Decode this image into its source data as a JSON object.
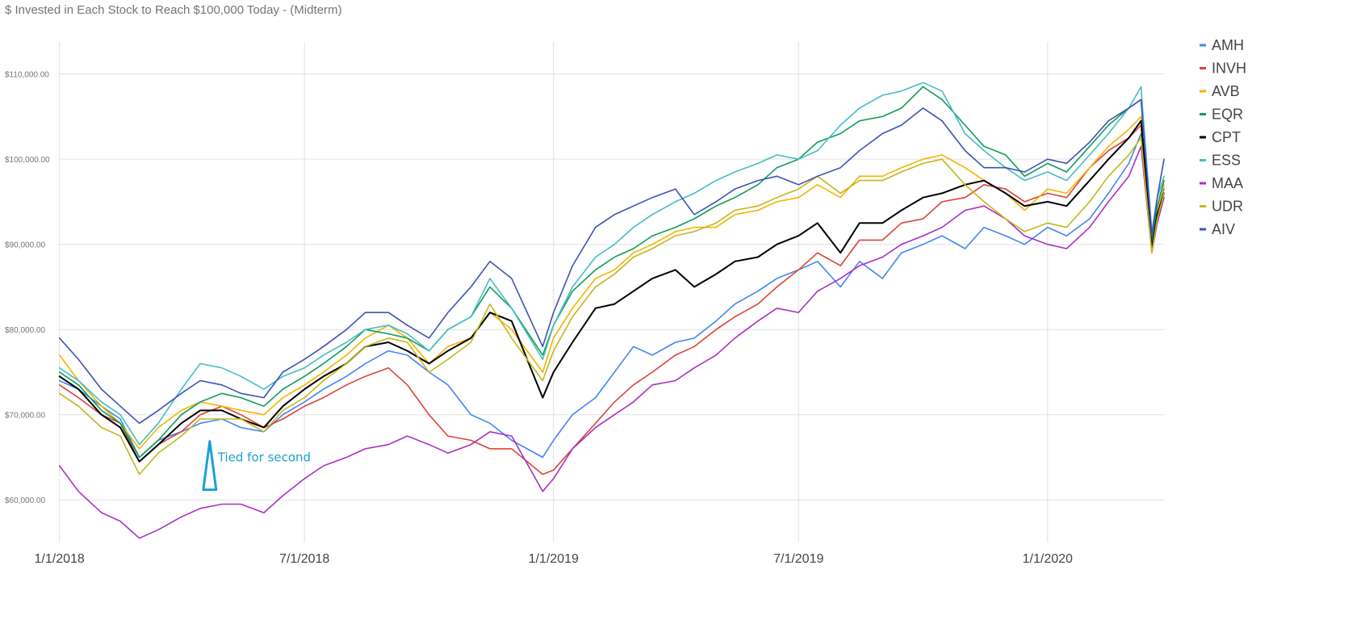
{
  "chart_data": {
    "type": "line",
    "title": "$ Invested in Each Stock to Reach $100,000 Today - (Midterm)",
    "xlabel": "",
    "ylabel": "",
    "ylim": [
      55000,
      113000
    ],
    "x_range": [
      "2017-12-31",
      "2020-03-27"
    ],
    "grid": true,
    "legend_position": "right",
    "y_ticks": [
      60000,
      70000,
      80000,
      90000,
      100000,
      110000
    ],
    "y_tick_labels": [
      "$60,000.00",
      "$70,000.00",
      "$80,000.00",
      "$90,000.00",
      "$100,000.00",
      "$110,000.00"
    ],
    "x_ticks": [
      "2018-01-01",
      "2018-07-01",
      "2019-01-01",
      "2019-07-01",
      "2020-01-01"
    ],
    "x_tick_labels": [
      "1/1/2018",
      "7/1/2018",
      "1/1/2019",
      "7/1/2019",
      "1/1/2020"
    ],
    "x_dates": [
      "2018-01-01",
      "2018-01-15",
      "2018-02-01",
      "2018-02-15",
      "2018-03-01",
      "2018-03-15",
      "2018-04-01",
      "2018-04-15",
      "2018-05-01",
      "2018-05-15",
      "2018-06-01",
      "2018-06-15",
      "2018-07-01",
      "2018-07-15",
      "2018-08-01",
      "2018-08-15",
      "2018-09-01",
      "2018-09-15",
      "2018-10-01",
      "2018-10-15",
      "2018-11-01",
      "2018-11-15",
      "2018-12-01",
      "2018-12-24",
      "2019-01-01",
      "2019-01-15",
      "2019-02-01",
      "2019-02-15",
      "2019-03-01",
      "2019-03-15",
      "2019-04-01",
      "2019-04-15",
      "2019-05-01",
      "2019-05-15",
      "2019-06-01",
      "2019-06-15",
      "2019-07-01",
      "2019-07-15",
      "2019-08-01",
      "2019-08-15",
      "2019-09-01",
      "2019-09-15",
      "2019-10-01",
      "2019-10-15",
      "2019-11-01",
      "2019-11-15",
      "2019-12-01",
      "2019-12-15",
      "2020-01-01",
      "2020-01-15",
      "2020-02-01",
      "2020-02-15",
      "2020-03-01",
      "2020-03-10",
      "2020-03-18",
      "2020-03-22",
      "2020-03-27"
    ],
    "series": [
      {
        "name": "AMH",
        "color": "#4285f4",
        "values": [
          74000,
          73000,
          71000,
          69500,
          65000,
          67000,
          68000,
          69000,
          69500,
          68500,
          68000,
          70000,
          71500,
          73000,
          74500,
          76000,
          77500,
          77000,
          75000,
          73500,
          70000,
          69000,
          67000,
          65000,
          67000,
          70000,
          72000,
          75000,
          78000,
          77000,
          78500,
          79000,
          81000,
          83000,
          84500,
          86000,
          87000,
          88000,
          85000,
          88000,
          86000,
          89000,
          90000,
          91000,
          89500,
          92000,
          91000,
          90000,
          92000,
          91000,
          93000,
          96000,
          99500,
          103000,
          90000,
          94000,
          96500
        ]
      },
      {
        "name": "INVH",
        "color": "#db4437",
        "values": [
          73500,
          72000,
          70000,
          69000,
          64500,
          66500,
          68000,
          70000,
          71000,
          70000,
          68500,
          69500,
          71000,
          72000,
          73500,
          74500,
          75500,
          73500,
          70000,
          67500,
          67000,
          66000,
          66000,
          63000,
          63500,
          66000,
          69000,
          71500,
          73500,
          75000,
          77000,
          78000,
          80000,
          81500,
          83000,
          85000,
          87000,
          89000,
          87500,
          90500,
          90500,
          92500,
          93000,
          95000,
          95500,
          97000,
          96500,
          95000,
          96000,
          95500,
          99000,
          101000,
          102500,
          104000,
          90000,
          93000,
          96000
        ]
      },
      {
        "name": "AVB",
        "color": "#f4b400",
        "values": [
          77000,
          74000,
          71000,
          69000,
          66000,
          68500,
          70500,
          71500,
          71000,
          70500,
          70000,
          72000,
          73500,
          75000,
          77000,
          79000,
          80500,
          79000,
          76000,
          78000,
          79000,
          82000,
          80000,
          75000,
          79000,
          82500,
          86000,
          87000,
          89000,
          90000,
          91500,
          92000,
          92000,
          93500,
          94000,
          95000,
          95500,
          97000,
          95500,
          98000,
          98000,
          99000,
          100000,
          100500,
          99000,
          97500,
          96000,
          94000,
          96500,
          96000,
          99000,
          101500,
          103500,
          105000,
          89500,
          94000,
          97000
        ]
      },
      {
        "name": "EQR",
        "color": "#0f9d58",
        "values": [
          75000,
          73500,
          70500,
          69000,
          65000,
          67000,
          70000,
          71500,
          72500,
          72000,
          71000,
          73000,
          74500,
          76000,
          78000,
          80000,
          79500,
          79000,
          77500,
          80000,
          81500,
          85000,
          82500,
          77000,
          80500,
          84500,
          87000,
          88500,
          89500,
          91000,
          92000,
          93000,
          94500,
          95500,
          97000,
          99000,
          100000,
          102000,
          103000,
          104500,
          105000,
          106000,
          108500,
          107000,
          104000,
          101500,
          100500,
          98000,
          99500,
          98500,
          101500,
          104000,
          106000,
          107000,
          90500,
          94500,
          97500
        ]
      },
      {
        "name": "CPT",
        "color": "#000000",
        "values": [
          74500,
          73000,
          70000,
          68500,
          64500,
          66500,
          69000,
          70500,
          70500,
          69500,
          68500,
          71000,
          73000,
          74500,
          76000,
          78000,
          78500,
          77500,
          76000,
          77500,
          79000,
          82000,
          81000,
          72000,
          75000,
          78500,
          82500,
          83000,
          84500,
          86000,
          87000,
          85000,
          86500,
          88000,
          88500,
          90000,
          91000,
          92500,
          89000,
          92500,
          92500,
          94000,
          95500,
          96000,
          97000,
          97500,
          96000,
          94500,
          95000,
          94500,
          97500,
          100000,
          102500,
          104500,
          89500,
          93500,
          96000
        ]
      },
      {
        "name": "ESS",
        "color": "#46bdc6",
        "values": [
          75500,
          74000,
          71500,
          70000,
          66500,
          69000,
          73000,
          76000,
          75500,
          74500,
          73000,
          74500,
          75500,
          77000,
          78500,
          80000,
          80500,
          79500,
          77500,
          80000,
          81500,
          86000,
          82500,
          76500,
          80500,
          85000,
          88500,
          90000,
          92000,
          93500,
          95000,
          96000,
          97500,
          98500,
          99500,
          100500,
          100000,
          101000,
          104000,
          106000,
          107500,
          108000,
          109000,
          108000,
          103000,
          101000,
          99000,
          97500,
          98500,
          97500,
          100500,
          103000,
          106000,
          108500,
          91500,
          95500,
          98000
        ]
      },
      {
        "name": "MAA",
        "color": "#ab30c4",
        "values": [
          64000,
          61000,
          58500,
          57500,
          55500,
          56500,
          58000,
          59000,
          59500,
          59500,
          58500,
          60500,
          62500,
          64000,
          65000,
          66000,
          66500,
          67500,
          66500,
          65500,
          66500,
          68000,
          67500,
          61000,
          62500,
          66000,
          68500,
          70000,
          71500,
          73500,
          74000,
          75500,
          77000,
          79000,
          81000,
          82500,
          82000,
          84500,
          86000,
          87500,
          88500,
          90000,
          91000,
          92000,
          94000,
          94500,
          93000,
          91000,
          90000,
          89500,
          92000,
          95000,
          98000,
          101500,
          89000,
          92500,
          95500
        ]
      },
      {
        "name": "UDR",
        "color": "#c2b81b",
        "values": [
          72500,
          71000,
          68500,
          67500,
          63000,
          65500,
          67500,
          69500,
          69500,
          69500,
          68000,
          70500,
          72000,
          74000,
          76000,
          78000,
          79000,
          78500,
          75000,
          76500,
          78500,
          83000,
          79000,
          74000,
          77500,
          81500,
          85000,
          86500,
          88500,
          89500,
          91000,
          91500,
          92500,
          94000,
          94500,
          95500,
          96500,
          98000,
          96000,
          97500,
          97500,
          98500,
          99500,
          100000,
          97000,
          95000,
          93000,
          91500,
          92500,
          92000,
          95000,
          98000,
          100500,
          102500,
          89000,
          93000,
          96000
        ]
      },
      {
        "name": "AIV",
        "color": "#3f51b5",
        "values": [
          79000,
          76500,
          73000,
          71000,
          69000,
          70500,
          72500,
          74000,
          73500,
          72500,
          72000,
          75000,
          76500,
          78000,
          80000,
          82000,
          82000,
          80500,
          79000,
          82000,
          85000,
          88000,
          86000,
          78000,
          82000,
          87500,
          92000,
          93500,
          94500,
          95500,
          96500,
          93500,
          95000,
          96500,
          97500,
          98000,
          97000,
          98000,
          99000,
          101000,
          103000,
          104000,
          106000,
          104500,
          101000,
          99000,
          99000,
          98500,
          100000,
          99500,
          102000,
          104500,
          106000,
          107000,
          91000,
          95500,
          100000
        ]
      }
    ],
    "annotations": [
      {
        "text": "Tied for second",
        "color": "#1aa0d8",
        "x": "2018-04-22",
        "y": 66500
      }
    ]
  }
}
